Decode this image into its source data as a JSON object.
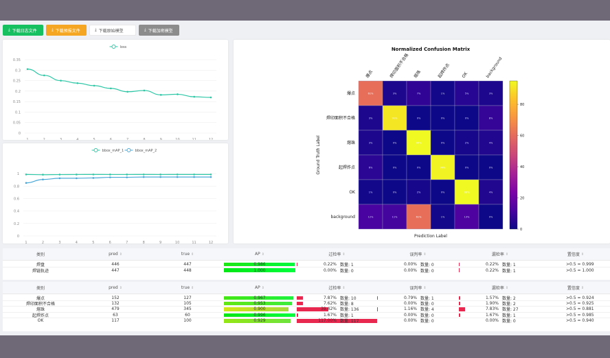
{
  "toolbar": {
    "buttons": [
      {
        "label": "下载日志文件",
        "style": "green"
      },
      {
        "label": "下载预报文件",
        "style": "orange"
      },
      {
        "label": "下载原始模型",
        "style": "white"
      },
      {
        "label": "下载加密模型",
        "style": "gray"
      }
    ]
  },
  "chart_data": [
    {
      "type": "line",
      "legend": [
        "loss"
      ],
      "x": [
        1,
        2,
        3,
        4,
        5,
        6,
        7,
        8,
        9,
        10,
        11,
        12
      ],
      "series": [
        {
          "name": "loss",
          "values": [
            0.305,
            0.275,
            0.25,
            0.238,
            0.226,
            0.213,
            0.197,
            0.203,
            0.182,
            0.185,
            0.173,
            0.17
          ],
          "color": "#2ec7a6"
        }
      ],
      "ylim": [
        0,
        0.35
      ],
      "yticks": [
        "0.35",
        "0.3",
        "0.25",
        "0.2",
        "0.15",
        "0.1",
        "0.05",
        "0"
      ],
      "xticks": [
        "1",
        "2",
        "3",
        "4",
        "5",
        "6",
        "7",
        "8",
        "9",
        "10",
        "11",
        "12"
      ],
      "grid": true,
      "legend_position": "top-center"
    },
    {
      "type": "line",
      "legend": [
        "bbox_mAP_1",
        "bbox_mAP_2"
      ],
      "x": [
        1,
        2,
        3,
        4,
        5,
        6,
        7,
        8,
        9,
        10,
        11,
        12
      ],
      "series": [
        {
          "name": "bbox_mAP_1",
          "values": [
            0.986,
            0.982,
            0.984,
            0.985,
            0.986,
            0.985,
            0.985,
            0.986,
            0.985,
            0.986,
            0.986,
            0.986
          ],
          "color": "#2ec7a6"
        },
        {
          "name": "bbox_mAP_2",
          "values": [
            0.85,
            0.905,
            0.925,
            0.925,
            0.93,
            0.94,
            0.94,
            0.945,
            0.945,
            0.945,
            0.945,
            0.945
          ],
          "color": "#4aa8d8"
        }
      ],
      "ylim": [
        0,
        1.1
      ],
      "yticks": [
        "1",
        "0.8",
        "0.6",
        "0.4",
        "0.2",
        "0"
      ],
      "xticks": [
        "1",
        "2",
        "3",
        "4",
        "5",
        "6",
        "7",
        "8",
        "9",
        "10",
        "11",
        "12"
      ],
      "grid": true,
      "legend_position": "top-center"
    },
    {
      "type": "heatmap",
      "title": "Normalized Confusion Matrix",
      "xlabel": "Prediction Label",
      "ylabel": "Ground Truth Label",
      "labels": [
        "爆点",
        "焊印面积不合格",
        "熔珠",
        "起焊炸点",
        "OK",
        "background"
      ],
      "matrix": [
        [
          61,
          3,
          7,
          1,
          5,
          3
        ],
        [
          3,
          91,
          0,
          0,
          0,
          8
        ],
        [
          3,
          0,
          96,
          0,
          2,
          4
        ],
        [
          6,
          0,
          0,
          94,
          0,
          0
        ],
        [
          1,
          0,
          2,
          0,
          98,
          4
        ],
        [
          12,
          11,
          61,
          1,
          13,
          0
        ]
      ],
      "cell_labels": [
        [
          "61%",
          "3%",
          "7%",
          "1%",
          "5%",
          "3%"
        ],
        [
          "3%",
          "91%",
          "0%",
          "0%",
          "0%",
          "8%"
        ],
        [
          "3%",
          "0%",
          "96%",
          "0%",
          "2%",
          "4%"
        ],
        [
          "6%",
          "0%",
          "0%",
          "94%",
          "0%",
          "0%"
        ],
        [
          "1%",
          "0%",
          "2%",
          "0%",
          "98%",
          "4%"
        ],
        [
          "12%",
          "11%",
          "61%",
          "1%",
          "13%",
          "0%"
        ]
      ],
      "colorbar": {
        "min": 0,
        "max": 95,
        "ticks": [
          "80",
          "60",
          "40",
          "20",
          "0"
        ]
      },
      "cmap": "plasma"
    }
  ],
  "table1": {
    "headers": [
      "类别",
      "pred",
      "true",
      "AP",
      "过检率",
      "误判率",
      "漏检率",
      "置信度"
    ],
    "rows": [
      {
        "cat": "焊盘",
        "pred": "446",
        "true": "447",
        "ap": "0.986",
        "ap_frac": 0.986,
        "over": "0.22%",
        "over_count": "数量: 1",
        "over_frac": 0.0022,
        "mis": "0.00%",
        "mis_count": "数量: 0",
        "mis_frac": 0,
        "miss": "0.22%",
        "miss_count": "数量: 1",
        "miss_frac": 0.0022,
        "conf": ">0.5 = 0.999"
      },
      {
        "cat": "焊链轨迹",
        "pred": "447",
        "true": "448",
        "ap": "1.000",
        "ap_frac": 1.0,
        "over": "0.00%",
        "over_count": "数量: 0",
        "over_frac": 0,
        "mis": "0.00%",
        "mis_count": "数量: 0",
        "mis_frac": 0,
        "miss": "0.22%",
        "miss_count": "数量: 1",
        "miss_frac": 0.0022,
        "conf": ">0.5 = 1.000"
      }
    ]
  },
  "table2": {
    "headers": [
      "类别",
      "pred",
      "true",
      "AP",
      "过检率",
      "误判率",
      "漏检率",
      "置信度"
    ],
    "rows": [
      {
        "cat": "爆点",
        "pred": "152",
        "true": "127",
        "ap": "0.967",
        "ap_frac": 0.967,
        "over": "7.87%",
        "over_count": "数量: 10",
        "over_frac": 0.0787,
        "mis": "0.79%",
        "mis_count": "数量: 1",
        "mis_frac": 0.0079,
        "miss": "1.57%",
        "miss_count": "数量: 2",
        "miss_frac": 0.0157,
        "conf": ">0.5 = 0.924"
      },
      {
        "cat": "焊印面积不合格",
        "pred": "132",
        "true": "105",
        "ap": "0.953",
        "ap_frac": 0.953,
        "over": "7.62%",
        "over_count": "数量: 8",
        "over_frac": 0.0762,
        "mis": "0.00%",
        "mis_count": "数量: 0",
        "mis_frac": 0,
        "miss": "1.90%",
        "miss_count": "数量: 2",
        "miss_frac": 0.019,
        "conf": ">0.5 = 0.925"
      },
      {
        "cat": "熔珠",
        "pred": "479",
        "true": "345",
        "ap": "0.900",
        "ap_frac": 0.9,
        "over": "39.42%",
        "over_count": "数量: 136",
        "over_frac": 0.3942,
        "mis": "1.16%",
        "mis_count": "数量: 4",
        "mis_frac": 0.0116,
        "miss": "7.83%",
        "miss_count": "数量: 27",
        "miss_frac": 0.0783,
        "conf": ">0.5 = 0.881"
      },
      {
        "cat": "起焊炸点",
        "pred": "63",
        "true": "60",
        "ap": "0.996",
        "ap_frac": 0.996,
        "over": "1.67%",
        "over_count": "数量: 1",
        "over_frac": 0.0167,
        "mis": "0.00%",
        "mis_count": "数量: 0",
        "mis_frac": 0,
        "miss": "1.67%",
        "miss_count": "数量: 1",
        "miss_frac": 0.0167,
        "conf": ">0.5 = 0.985"
      },
      {
        "cat": "OK",
        "pred": "117",
        "true": "100",
        "ap": "0.929",
        "ap_frac": 0.929,
        "over": "117.00%",
        "over_count": "数量: 117",
        "over_frac": 1.0,
        "mis": "0.00%",
        "mis_count": "数量: 0",
        "mis_frac": 0,
        "miss": "0.00%",
        "miss_count": "数量: 0",
        "miss_frac": 0,
        "conf": ">0.5 = 0.940"
      }
    ]
  }
}
